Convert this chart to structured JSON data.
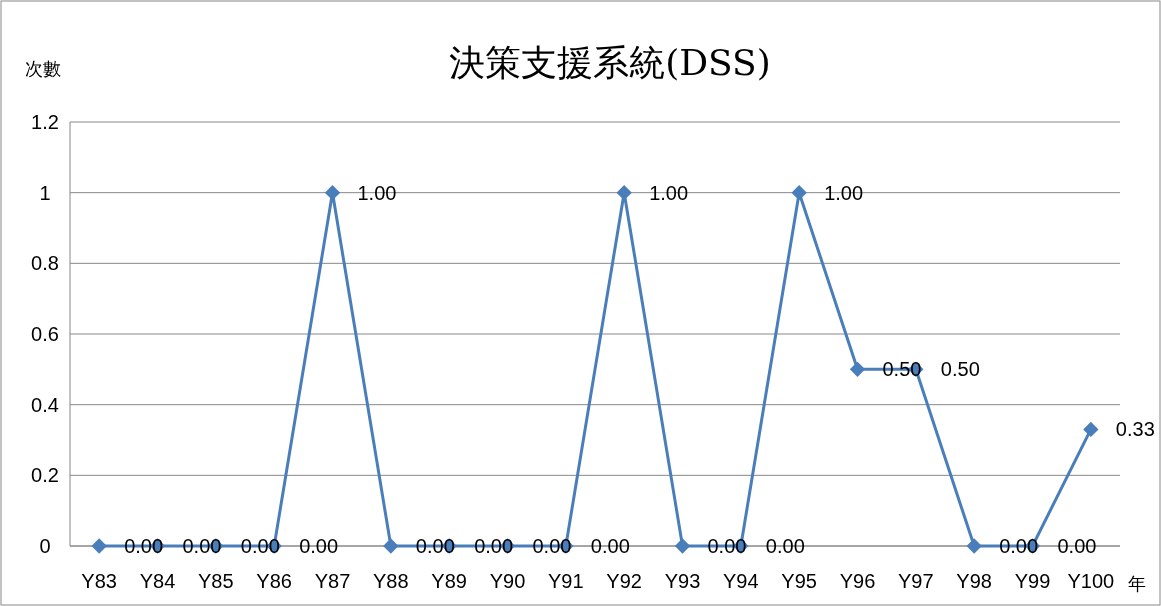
{
  "chart_data": {
    "type": "line",
    "title": "決策支援系統(DSS)",
    "ylabel": "次數",
    "xlabel": "年",
    "categories": [
      "Y83",
      "Y84",
      "Y85",
      "Y86",
      "Y87",
      "Y88",
      "Y89",
      "Y90",
      "Y91",
      "Y92",
      "Y93",
      "Y94",
      "Y95",
      "Y96",
      "Y97",
      "Y98",
      "Y99",
      "Y100"
    ],
    "series": [
      {
        "color": "#4a7ebb",
        "values": [
          0,
          0,
          0,
          0,
          1,
          0,
          0,
          0,
          0,
          1,
          0,
          0,
          1,
          0.5,
          0.5,
          0,
          0,
          0.33
        ],
        "value_labels": [
          "0.00",
          "0.00",
          "0.00",
          "0.00",
          "1.00",
          "0.00",
          "0.00",
          "0.00",
          "0.00",
          "1.00",
          "0.00",
          "0.00",
          "1.00",
          "0.50",
          "0.50",
          "0.00",
          "0.00",
          "0.33"
        ]
      }
    ],
    "ylim": [
      0,
      1.2
    ],
    "yticks": [
      0,
      0.2,
      0.4,
      0.6,
      0.8,
      1,
      1.2
    ],
    "grid": "y",
    "marker": "diamond",
    "line_style": "solid"
  }
}
